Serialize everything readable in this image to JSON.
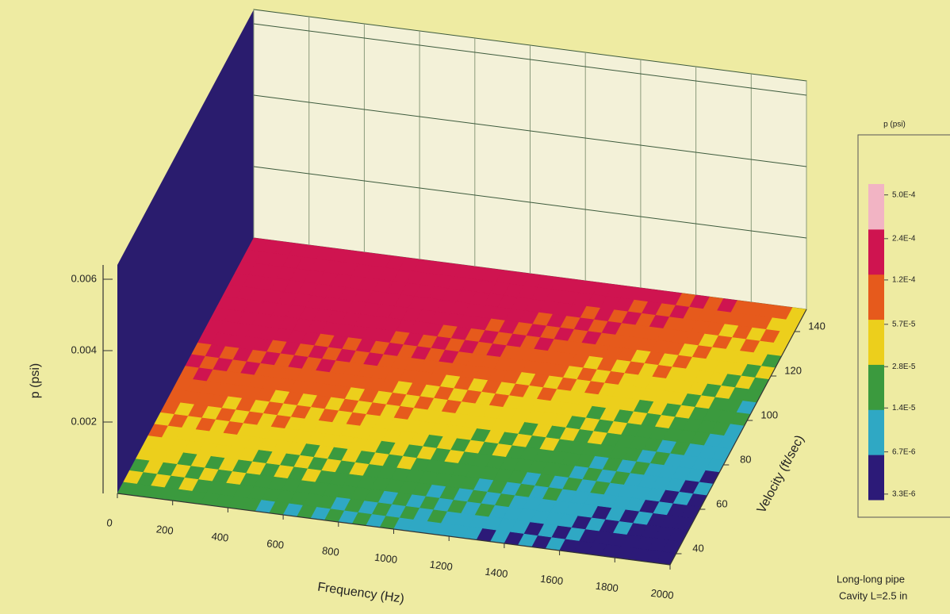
{
  "chart_data": {
    "type": "surface",
    "zlabel": "p (psi)",
    "xlabel": "Frequency (Hz)",
    "ylabel": "Velocity (ft/sec)",
    "xlim": [
      0,
      2000
    ],
    "xticks": [
      0,
      200,
      400,
      600,
      800,
      1000,
      1200,
      1400,
      1600,
      1800,
      2000
    ],
    "ylim": [
      35,
      150
    ],
    "yticks": [
      40,
      60,
      80,
      100,
      120,
      140
    ],
    "zlim": [
      0,
      0.0064
    ],
    "zticks": [
      0.002,
      0.004,
      0.006
    ],
    "colorbar": {
      "title": "p (psi)",
      "scale": "log",
      "lim": [
        3e-06,
        0.0006
      ],
      "colors": [
        "#2c1a78",
        "#2fa8c4",
        "#3b9a3e",
        "#eccf1c",
        "#e65a1c",
        "#cf1450",
        "#f2b4c4"
      ],
      "ticks": [
        {
          "value": 0.0005,
          "label": "5.0E-4"
        },
        {
          "value": 0.00024,
          "label": "2.4E-4"
        },
        {
          "value": 0.00012,
          "label": "1.2E-4"
        },
        {
          "value": 5.7e-05,
          "label": "5.7E-5"
        },
        {
          "value": 2.8e-05,
          "label": "2.8E-5"
        },
        {
          "value": 1.4e-05,
          "label": "1.4E-5"
        },
        {
          "value": 6.7e-06,
          "label": "6.7E-6"
        },
        {
          "value": 3.3e-06,
          "label": "3.3E-6"
        }
      ]
    },
    "note": [
      "Long-long pipe",
      "Cavity L=2.5 in"
    ]
  }
}
